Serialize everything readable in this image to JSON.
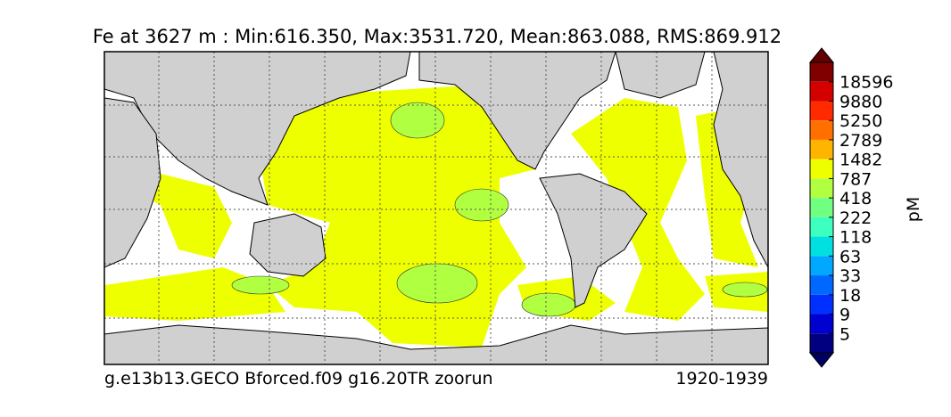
{
  "title": "Fe at 3627 m : Min:616.350, Max:3531.720, Mean:863.088, RMS:869.912",
  "map": {
    "footer_left": "g.e13b13.GECO Bforced.f09 g16.20TR zoorun",
    "footer_right": "1920-1939"
  },
  "colorbar": {
    "label": "pM",
    "ticks": [
      "18596",
      "9880",
      "5250",
      "2789",
      "1482",
      "787",
      "418",
      "222",
      "118",
      "63",
      "33",
      "18",
      "9",
      "5"
    ],
    "colors": [
      "#800000",
      "#d40000",
      "#ff2a00",
      "#ff7000",
      "#ffb400",
      "#eeff00",
      "#b0ff40",
      "#70ff80",
      "#3cffc0",
      "#00e0e0",
      "#00a8ff",
      "#0068ff",
      "#0030ff",
      "#0000d0",
      "#000080"
    ],
    "over_color": "#600000",
    "under_color": "#000060"
  }
}
